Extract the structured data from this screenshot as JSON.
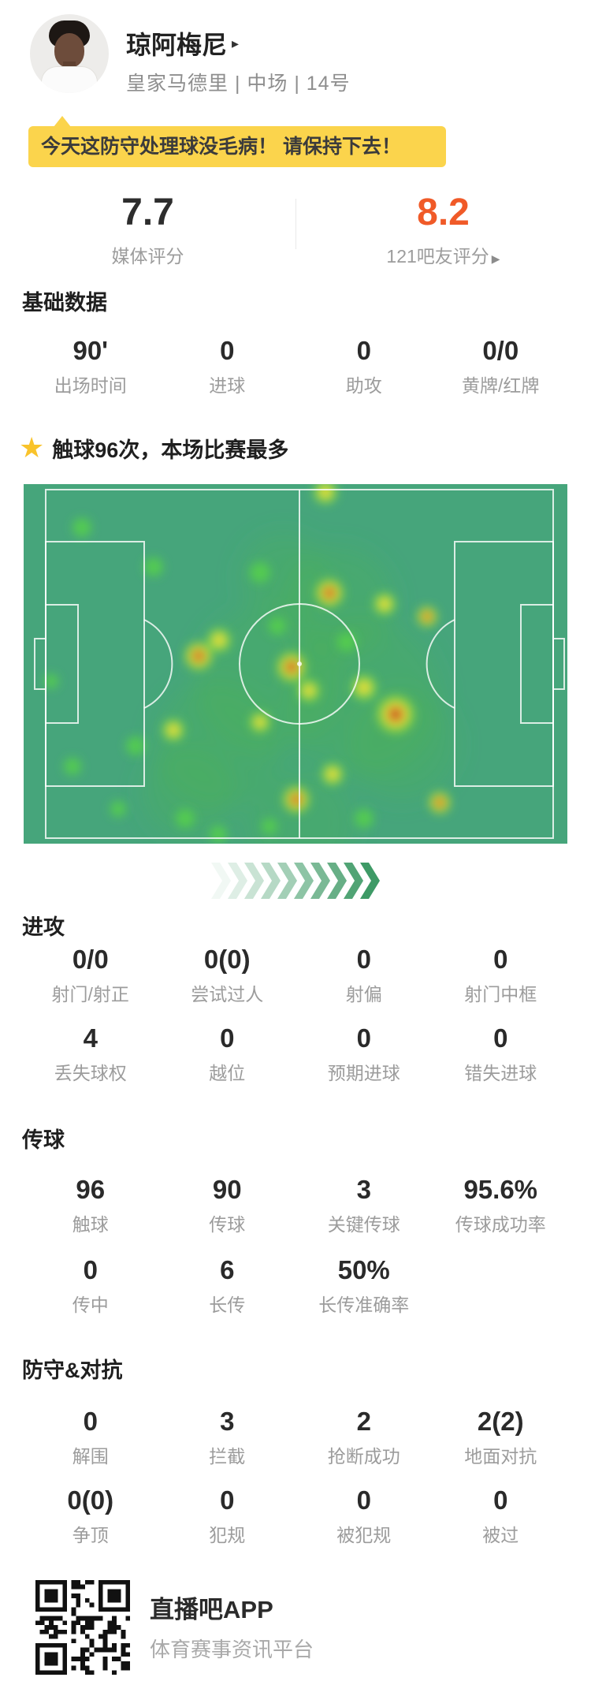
{
  "header": {
    "player_name": "琼阿梅尼",
    "name_arrow": "▸",
    "team_info": "皇家马德里 | 中场 | 14号"
  },
  "banner": {
    "text": "今天这防守处理球没毛病！ 请保持下去！",
    "bg_color": "#fbd44c"
  },
  "ratings": {
    "media": {
      "value": "7.7",
      "label": "媒体评分"
    },
    "fans": {
      "value": "8.2",
      "label": "121吧友评分",
      "arrow": "▶",
      "value_color": "#f05a28"
    }
  },
  "highlight": {
    "icon": "star-icon",
    "text": "触球96次，本场比赛最多"
  },
  "sections": [
    {
      "id": "basic",
      "title": "基础数据",
      "rows": [
        [
          {
            "value": "90'",
            "label": "出场时间"
          },
          {
            "value": "0",
            "label": "进球"
          },
          {
            "value": "0",
            "label": "助攻"
          },
          {
            "value": "0/0",
            "label": "黄牌/红牌"
          }
        ]
      ]
    },
    {
      "id": "attack",
      "title": "进攻",
      "rows": [
        [
          {
            "value": "0/0",
            "label": "射门/射正"
          },
          {
            "value": "0(0)",
            "label": "尝试过人"
          },
          {
            "value": "0",
            "label": "射偏"
          },
          {
            "value": "0",
            "label": "射门中框"
          }
        ],
        [
          {
            "value": "4",
            "label": "丢失球权"
          },
          {
            "value": "0",
            "label": "越位"
          },
          {
            "value": "0",
            "label": "预期进球"
          },
          {
            "value": "0",
            "label": "错失进球"
          }
        ]
      ]
    },
    {
      "id": "passing",
      "title": "传球",
      "rows": [
        [
          {
            "value": "96",
            "label": "触球"
          },
          {
            "value": "90",
            "label": "传球"
          },
          {
            "value": "3",
            "label": "关键传球"
          },
          {
            "value": "95.6%",
            "label": "传球成功率"
          }
        ],
        [
          {
            "value": "0",
            "label": "传中"
          },
          {
            "value": "6",
            "label": "长传"
          },
          {
            "value": "50%",
            "label": "长传准确率"
          }
        ]
      ]
    },
    {
      "id": "defense",
      "title": "防守&对抗",
      "rows": [
        [
          {
            "value": "0",
            "label": "解围"
          },
          {
            "value": "3",
            "label": "拦截"
          },
          {
            "value": "2",
            "label": "抢断成功"
          },
          {
            "value": "2(2)",
            "label": "地面对抗"
          }
        ],
        [
          {
            "value": "0(0)",
            "label": "争顶"
          },
          {
            "value": "0",
            "label": "犯规"
          },
          {
            "value": "0",
            "label": "被犯规"
          },
          {
            "value": "0",
            "label": "被过"
          }
        ]
      ]
    }
  ],
  "heatmap": {
    "type": "heatmap",
    "description": "player touch heatmap on football pitch, attacking left to right",
    "pitch_color": "#46a57b",
    "line_color": "rgba(255,255,255,0.8)",
    "underlays": [
      [
        310,
        250,
        95
      ],
      [
        430,
        270,
        100
      ],
      [
        245,
        330,
        80
      ],
      [
        400,
        150,
        70
      ],
      [
        330,
        118,
        55
      ],
      [
        480,
        330,
        70
      ],
      [
        210,
        390,
        60
      ],
      [
        350,
        430,
        70
      ]
    ],
    "blobs": [
      [
        383,
        10,
        15,
        2
      ],
      [
        74,
        55,
        12,
        1
      ],
      [
        165,
        105,
        12,
        1
      ],
      [
        300,
        112,
        13,
        1
      ],
      [
        388,
        138,
        18,
        3
      ],
      [
        458,
        152,
        14,
        2
      ],
      [
        512,
        168,
        13,
        3
      ],
      [
        322,
        180,
        11,
        1
      ],
      [
        410,
        200,
        12,
        1
      ],
      [
        248,
        198,
        15,
        2
      ],
      [
        222,
        218,
        18,
        3
      ],
      [
        340,
        232,
        19,
        3
      ],
      [
        362,
        262,
        14,
        2
      ],
      [
        432,
        258,
        16,
        2
      ],
      [
        472,
        292,
        24,
        3
      ],
      [
        300,
        302,
        13,
        2
      ],
      [
        190,
        312,
        14,
        2
      ],
      [
        142,
        332,
        12,
        1
      ],
      [
        346,
        400,
        17,
        3
      ],
      [
        528,
        404,
        14,
        3
      ],
      [
        205,
        424,
        12,
        1
      ],
      [
        247,
        444,
        11,
        1
      ],
      [
        312,
        434,
        10,
        1
      ],
      [
        392,
        368,
        14,
        2
      ],
      [
        432,
        424,
        12,
        1
      ],
      [
        120,
        412,
        10,
        1
      ],
      [
        62,
        358,
        11,
        1
      ],
      [
        35,
        250,
        9,
        1
      ]
    ],
    "intensity_levels": {
      "1": "low (green)",
      "2": "medium (yellow)",
      "3": "high (red core)"
    }
  },
  "chevrons": {
    "count": 10,
    "color": "#3e9a66",
    "direction": "right"
  },
  "footer": {
    "app_name": "直播吧APP",
    "app_desc": "体育赛事资讯平台"
  }
}
